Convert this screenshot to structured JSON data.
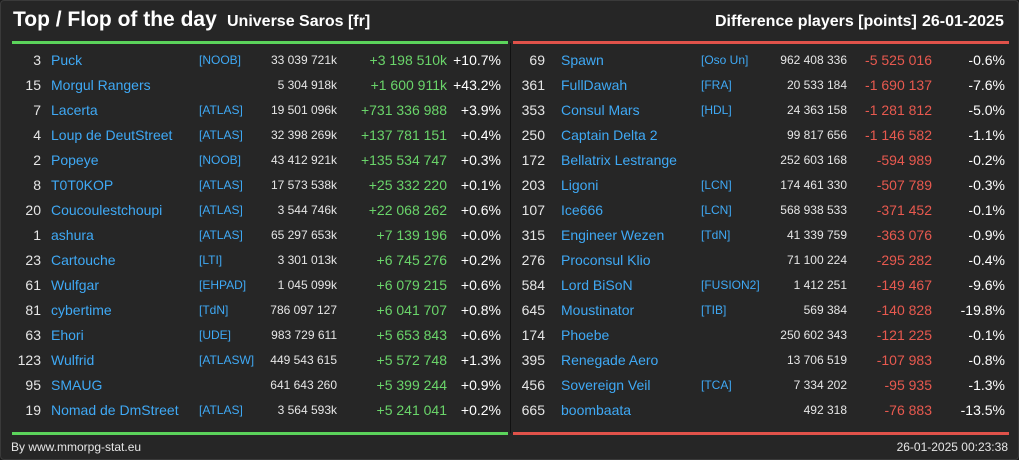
{
  "header": {
    "title": "Top / Flop of the day",
    "universe": "Universe Saros [fr]",
    "metric": "Difference players [points]",
    "date": "26-01-2025"
  },
  "colors": {
    "top_accent": "#5bd35b",
    "flop_accent": "#e0524a",
    "name_link": "#3fa9f5",
    "background": "#262626"
  },
  "top": [
    {
      "rank": "3",
      "name": "Puck",
      "alliance": "[NOOB]",
      "points": "33 039 721k",
      "diff": "+3 198 510k",
      "pct": "+10.7%"
    },
    {
      "rank": "15",
      "name": "Morgul Rangers",
      "alliance": "",
      "points": "5 304 918k",
      "diff": "+1 600 911k",
      "pct": "+43.2%"
    },
    {
      "rank": "7",
      "name": "Lacerta",
      "alliance": "[ATLAS]",
      "points": "19 501 096k",
      "diff": "+731 336 988",
      "pct": "+3.9%"
    },
    {
      "rank": "4",
      "name": "Loup de DeutStreet",
      "alliance": "[ATLAS]",
      "points": "32 398 269k",
      "diff": "+137 781 151",
      "pct": "+0.4%"
    },
    {
      "rank": "2",
      "name": "Popeye",
      "alliance": "[NOOB]",
      "points": "43 412 921k",
      "diff": "+135 534 747",
      "pct": "+0.3%"
    },
    {
      "rank": "8",
      "name": "T0T0KOP",
      "alliance": "[ATLAS]",
      "points": "17 573 538k",
      "diff": "+25 332 220",
      "pct": "+0.1%"
    },
    {
      "rank": "20",
      "name": "Coucoulestchoupi",
      "alliance": "[ATLAS]",
      "points": "3 544 746k",
      "diff": "+22 068 262",
      "pct": "+0.6%"
    },
    {
      "rank": "1",
      "name": "ashura",
      "alliance": "[ATLAS]",
      "points": "65 297 653k",
      "diff": "+7 139 196",
      "pct": "+0.0%"
    },
    {
      "rank": "23",
      "name": "Cartouche",
      "alliance": "[LTI]",
      "points": "3 301 013k",
      "diff": "+6 745 276",
      "pct": "+0.2%"
    },
    {
      "rank": "61",
      "name": "Wulfgar",
      "alliance": "[EHPAD]",
      "points": "1 045 099k",
      "diff": "+6 079 215",
      "pct": "+0.6%"
    },
    {
      "rank": "81",
      "name": "cybertime",
      "alliance": "[TdN]",
      "points": "786 097 127",
      "diff": "+6 041 707",
      "pct": "+0.8%"
    },
    {
      "rank": "63",
      "name": "Ehori",
      "alliance": "[UDE]",
      "points": "983 729 611",
      "diff": "+5 653 843",
      "pct": "+0.6%"
    },
    {
      "rank": "123",
      "name": "Wulfrid",
      "alliance": "[ATLASW]",
      "points": "449 543 615",
      "diff": "+5 572 748",
      "pct": "+1.3%"
    },
    {
      "rank": "95",
      "name": "SMAUG",
      "alliance": "",
      "points": "641 643 260",
      "diff": "+5 399 244",
      "pct": "+0.9%"
    },
    {
      "rank": "19",
      "name": "Nomad de DmStreet",
      "alliance": "[ATLAS]",
      "points": "3 564 593k",
      "diff": "+5 241 041",
      "pct": "+0.2%"
    }
  ],
  "flop": [
    {
      "rank": "69",
      "name": "Spawn",
      "alliance": "[Oso Un]",
      "points": "962 408 336",
      "diff": "-5 525 016",
      "pct": "-0.6%"
    },
    {
      "rank": "361",
      "name": "FullDawah",
      "alliance": "[FRA]",
      "points": "20 533 184",
      "diff": "-1 690 137",
      "pct": "-7.6%"
    },
    {
      "rank": "353",
      "name": "Consul Mars",
      "alliance": "[HDL]",
      "points": "24 363 158",
      "diff": "-1 281 812",
      "pct": "-5.0%"
    },
    {
      "rank": "250",
      "name": "Captain Delta 2",
      "alliance": "",
      "points": "99 817 656",
      "diff": "-1 146 582",
      "pct": "-1.1%"
    },
    {
      "rank": "172",
      "name": "Bellatrix Lestrange",
      "alliance": "",
      "points": "252 603 168",
      "diff": "-594 989",
      "pct": "-0.2%"
    },
    {
      "rank": "203",
      "name": "Ligoni",
      "alliance": "[LCN]",
      "points": "174 461 330",
      "diff": "-507 789",
      "pct": "-0.3%"
    },
    {
      "rank": "107",
      "name": "Ice666",
      "alliance": "[LCN]",
      "points": "568 938 533",
      "diff": "-371 452",
      "pct": "-0.1%"
    },
    {
      "rank": "315",
      "name": "Engineer Wezen",
      "alliance": "[TdN]",
      "points": "41 339 759",
      "diff": "-363 076",
      "pct": "-0.9%"
    },
    {
      "rank": "276",
      "name": "Proconsul Klio",
      "alliance": "",
      "points": "71 100 224",
      "diff": "-295 282",
      "pct": "-0.4%"
    },
    {
      "rank": "584",
      "name": "Lord BiSoN",
      "alliance": "[FUSION2]",
      "points": "1 412 251",
      "diff": "-149 467",
      "pct": "-9.6%"
    },
    {
      "rank": "645",
      "name": "Moustinator",
      "alliance": "[TIB]",
      "points": "569 384",
      "diff": "-140 828",
      "pct": "-19.8%"
    },
    {
      "rank": "174",
      "name": "Phoebe",
      "alliance": "",
      "points": "250 602 343",
      "diff": "-121 225",
      "pct": "-0.1%"
    },
    {
      "rank": "395",
      "name": "Renegade Aero",
      "alliance": "",
      "points": "13 706 519",
      "diff": "-107 983",
      "pct": "-0.8%"
    },
    {
      "rank": "456",
      "name": "Sovereign Veil",
      "alliance": "[TCA]",
      "points": "7 334 202",
      "diff": "-95 935",
      "pct": "-1.3%"
    },
    {
      "rank": "665",
      "name": "boombaata",
      "alliance": "",
      "points": "492 318",
      "diff": "-76 883",
      "pct": "-13.5%"
    }
  ],
  "footer": {
    "credit": "By www.mmorpg-stat.eu",
    "timestamp": "26-01-2025 00:23:38"
  }
}
